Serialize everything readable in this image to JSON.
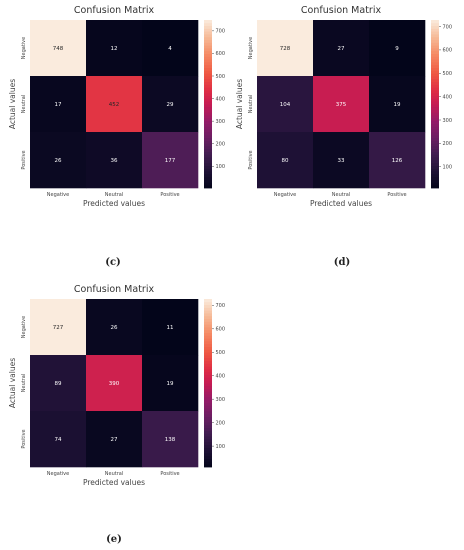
{
  "chart_data": [
    {
      "type": "heatmap",
      "panel": "(c)",
      "title": "Confusion Matrix",
      "xlabel": "Predicted values",
      "ylabel": "Actual values",
      "x_categories": [
        "Negative",
        "Neutral",
        "Positive"
      ],
      "y_categories": [
        "Negative",
        "Neutral",
        "Positive"
      ],
      "values": [
        [
          748,
          12,
          4
        ],
        [
          17,
          452,
          29
        ],
        [
          26,
          36,
          177
        ]
      ],
      "colorbar": {
        "colormap": "rocket",
        "range": [
          4,
          748
        ],
        "ticks": [
          100,
          200,
          300,
          400,
          500,
          600,
          700
        ]
      }
    },
    {
      "type": "heatmap",
      "panel": "(d)",
      "title": "Confusion Matrix",
      "xlabel": "Predicted values",
      "ylabel": "Actual values",
      "x_categories": [
        "Negative",
        "Neutral",
        "Positive"
      ],
      "y_categories": [
        "Negative",
        "Neutral",
        "Positive"
      ],
      "values": [
        [
          728,
          27,
          9
        ],
        [
          104,
          375,
          19
        ],
        [
          80,
          33,
          126
        ]
      ],
      "colorbar": {
        "colormap": "rocket",
        "range": [
          9,
          728
        ],
        "ticks": [
          100,
          200,
          300,
          400,
          500,
          600,
          700
        ]
      }
    },
    {
      "type": "heatmap",
      "panel": "(e)",
      "title": "Confusion Matrix",
      "xlabel": "Predicted values",
      "ylabel": "Actual values",
      "x_categories": [
        "Negative",
        "Neutral",
        "Positive"
      ],
      "y_categories": [
        "Negative",
        "Neutral",
        "Positive"
      ],
      "values": [
        [
          727,
          26,
          11
        ],
        [
          89,
          390,
          19
        ],
        [
          74,
          27,
          138
        ]
      ],
      "colorbar": {
        "colormap": "rocket",
        "range": [
          11,
          727
        ],
        "ticks": [
          100,
          200,
          300,
          400,
          500,
          600,
          700
        ]
      }
    }
  ]
}
